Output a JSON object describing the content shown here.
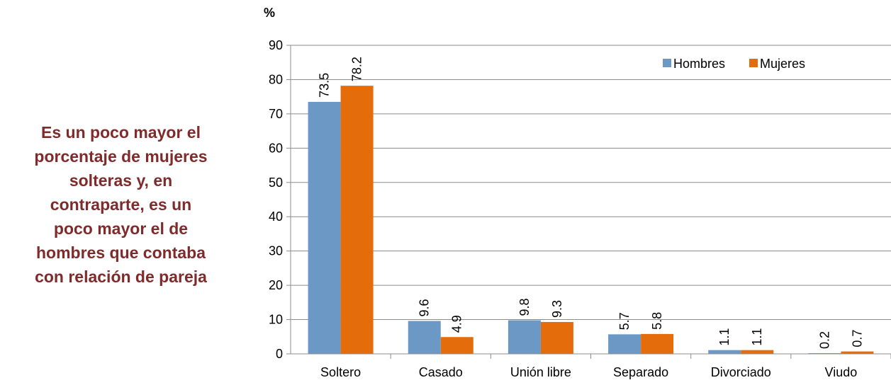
{
  "annotation": {
    "lines": [
      "Es un poco mayor el",
      "porcentaje de mujeres",
      "solteras y, en",
      "contraparte, es un",
      "poco mayor el de",
      "hombres que contaba",
      "con relación de pareja"
    ]
  },
  "chart_data": {
    "type": "bar",
    "title": "",
    "ylabel": "%",
    "xlabel": "",
    "ylim": [
      0,
      90
    ],
    "yticks": [
      0,
      10,
      20,
      30,
      40,
      50,
      60,
      70,
      80,
      90
    ],
    "categories": [
      "Soltero",
      "Casado",
      "Unión libre",
      "Separado",
      "Divorciado",
      "Viudo"
    ],
    "series": [
      {
        "name": "Hombres",
        "color": "#6b98c4",
        "values": [
          73.5,
          9.6,
          9.8,
          5.7,
          1.1,
          0.2
        ]
      },
      {
        "name": "Mujeres",
        "color": "#e46c0a",
        "values": [
          78.2,
          4.9,
          9.3,
          5.8,
          1.1,
          0.7
        ]
      }
    ],
    "legend": "top-right",
    "grid": true
  }
}
